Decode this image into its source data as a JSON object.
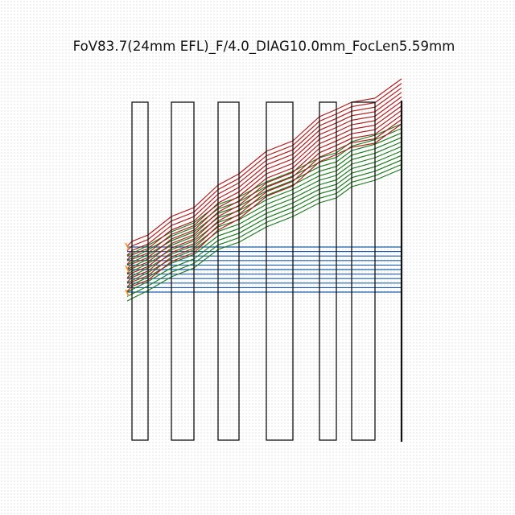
{
  "title": "FoV83.7(24mm EFL)_F/4.0_DIAG10.0mm_FocLen5.59mm",
  "colors": {
    "element_stroke": "#111111",
    "ray_on_axis": "#1f5fb0",
    "ray_mid_field": "#1a7a1a",
    "ray_full_field": "#b01818",
    "source_marker": "#ff8c1a"
  },
  "ray_groups": [
    {
      "name": "on-axis",
      "color_key": "ray_on_axis",
      "count": 11
    },
    {
      "name": "mid-field",
      "color_key": "ray_mid_field",
      "count": 11
    },
    {
      "name": "full-field",
      "color_key": "ray_full_field",
      "count": 11
    }
  ],
  "lens_elements": [
    {
      "id": "element-1"
    },
    {
      "id": "element-2"
    },
    {
      "id": "element-3"
    },
    {
      "id": "element-4"
    },
    {
      "id": "element-5"
    },
    {
      "id": "element-6"
    },
    {
      "id": "image-plane"
    }
  ]
}
